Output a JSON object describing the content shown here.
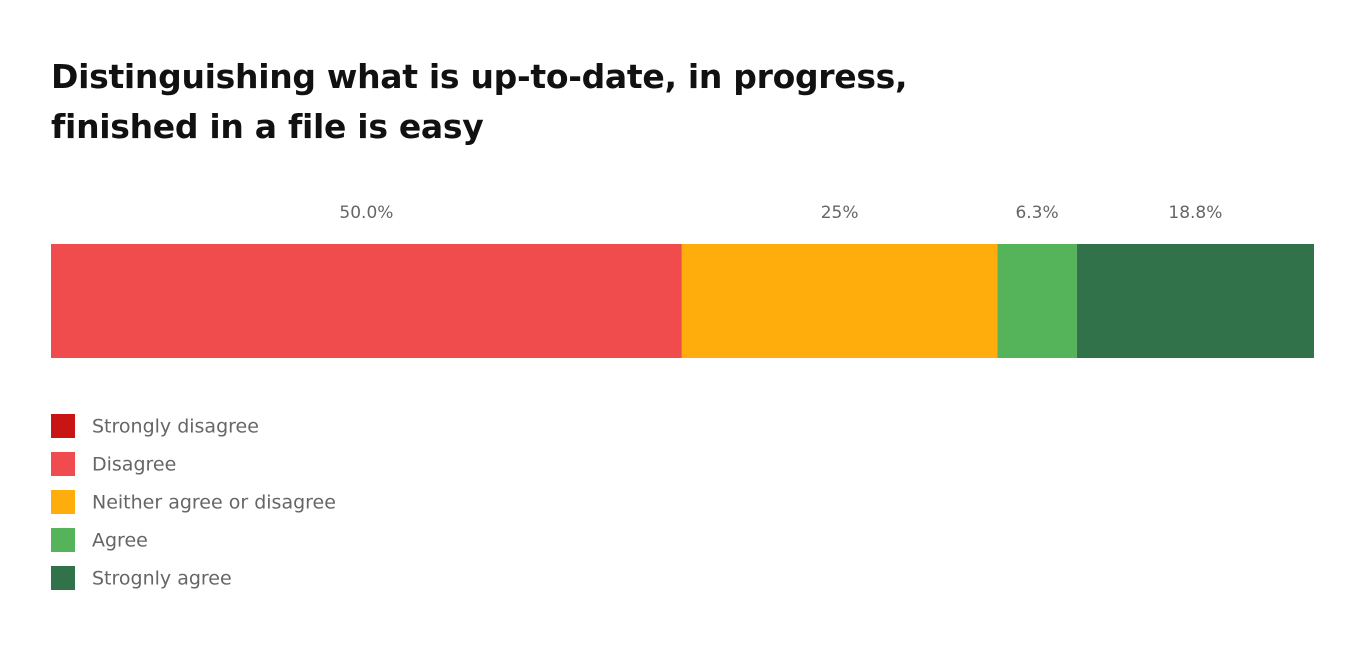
{
  "chart_data": {
    "type": "bar",
    "stacked": true,
    "title": "Distinguishing what is up-to-date, in progress, finished in a file is easy",
    "series": [
      {
        "name": "Strongly disagree",
        "color": "#c81414",
        "values": [
          0
        ]
      },
      {
        "name": "Disagree",
        "color": "#f04c4e",
        "values": [
          50
        ],
        "value_labels": [
          "50.0%"
        ]
      },
      {
        "name": "Neither agree or disagree",
        "color": "#ffad0d",
        "values": [
          25
        ],
        "value_labels": [
          "25%"
        ]
      },
      {
        "name": "Agree",
        "color": "#55b45a",
        "values": [
          6.3
        ],
        "value_labels": [
          "6.3%"
        ]
      },
      {
        "name": "Strognly agree",
        "color": "#32724a",
        "values": [
          18.8
        ],
        "value_labels": [
          "18.8%"
        ]
      }
    ]
  }
}
